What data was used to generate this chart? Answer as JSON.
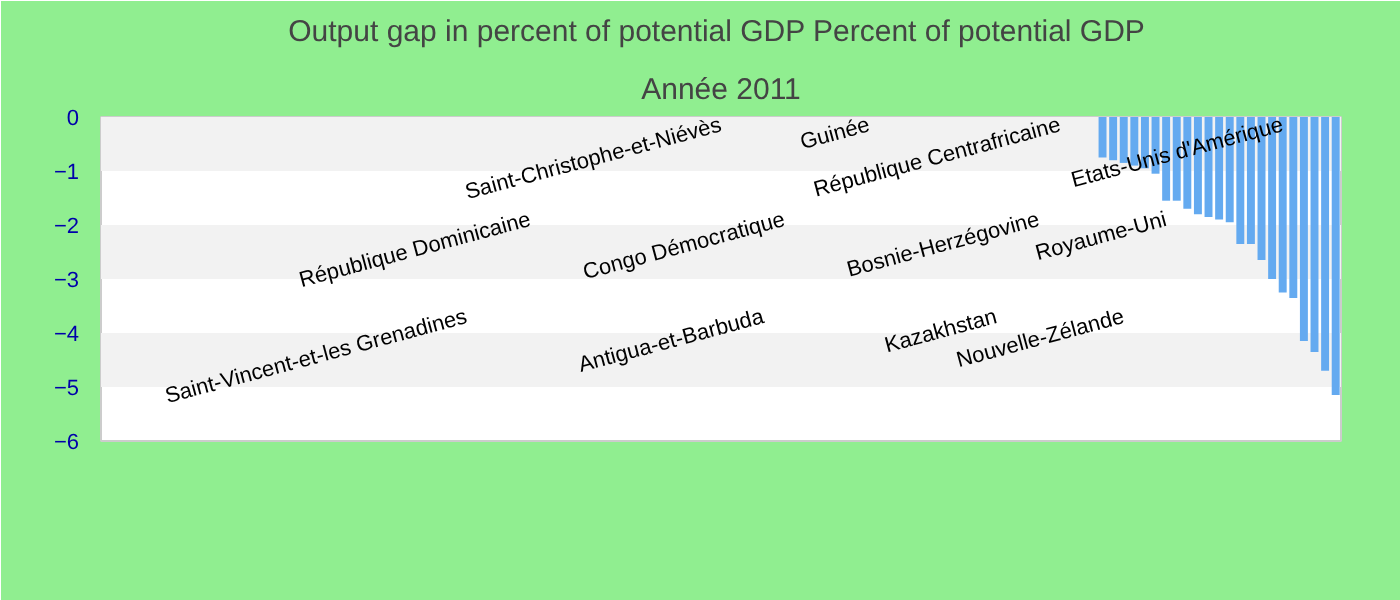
{
  "chart_data": {
    "type": "bar",
    "title": "Output gap in percent of potential GDP  Percent of potential GDP",
    "subtitle": "Année 2011",
    "categories": [
      null,
      null,
      null,
      null,
      null,
      null,
      null,
      null,
      null,
      null,
      null,
      null,
      null,
      null,
      null,
      null,
      null,
      null,
      null,
      null,
      null,
      null,
      null,
      null,
      null,
      null,
      null,
      null,
      null,
      null,
      null,
      null,
      null,
      null,
      "Saint-Vincent-et-les Grenadines",
      null,
      null,
      null,
      null,
      null,
      "République Dominicaine",
      null,
      null,
      null,
      null,
      null,
      null,
      null,
      null,
      null,
      null,
      null,
      null,
      null,
      null,
      null,
      null,
      null,
      "Saint-Christophe-et-Niévès",
      null,
      null,
      null,
      "Antigua-et-Barbuda",
      null,
      "Congo Démocratique",
      null,
      null,
      null,
      null,
      null,
      null,
      null,
      "Guinée",
      null,
      null,
      null,
      null,
      null,
      null,
      null,
      null,
      null,
      null,
      null,
      "Kazakhstan",
      null,
      null,
      null,
      "Bosnie-Herzégovine",
      null,
      "République Centrafricaine",
      null,
      null,
      null,
      null,
      null,
      "Nouvelle-Zélande",
      null,
      null,
      null,
      "Royaume-Uni",
      null,
      null,
      null,
      null,
      null,
      null,
      null,
      null,
      null,
      null,
      "Etats-Unis d'Amérique",
      null,
      null,
      null,
      null,
      null
    ],
    "values": [
      null,
      null,
      null,
      null,
      null,
      null,
      null,
      null,
      null,
      null,
      null,
      null,
      null,
      null,
      null,
      null,
      null,
      null,
      null,
      null,
      null,
      null,
      null,
      null,
      null,
      null,
      null,
      null,
      null,
      null,
      null,
      null,
      null,
      null,
      null,
      null,
      null,
      null,
      null,
      null,
      null,
      null,
      null,
      null,
      null,
      null,
      null,
      null,
      null,
      null,
      null,
      null,
      null,
      null,
      null,
      null,
      null,
      null,
      null,
      null,
      null,
      null,
      null,
      null,
      null,
      null,
      null,
      null,
      null,
      null,
      null,
      null,
      null,
      null,
      null,
      null,
      null,
      null,
      null,
      null,
      null,
      null,
      null,
      null,
      null,
      null,
      null,
      null,
      null,
      null,
      null,
      null,
      null,
      null,
      -0.75,
      -0.8,
      -0.85,
      -0.9,
      -0.95,
      -1.05,
      -1.55,
      -1.55,
      -1.7,
      -1.8,
      -1.85,
      -1.9,
      -1.95,
      -2.35,
      -2.35,
      -2.65,
      -3.0,
      -3.25,
      -3.35,
      -4.15,
      -4.35,
      -4.7,
      -5.15
    ],
    "color": "#64aaf0",
    "ylim": [
      -6,
      0
    ],
    "yticks": [
      -6,
      -5,
      -4,
      -3,
      -2,
      -1,
      0
    ],
    "tick_labels": "y",
    "bands": [
      {
        "axis": "y",
        "from": -1,
        "to": 0,
        "color": "#f2f2f2"
      },
      {
        "axis": "y",
        "from": -3,
        "to": -2,
        "color": "#f2f2f2"
      },
      {
        "axis": "y",
        "from": -5,
        "to": -4,
        "color": "#f2f2f2"
      }
    ]
  }
}
